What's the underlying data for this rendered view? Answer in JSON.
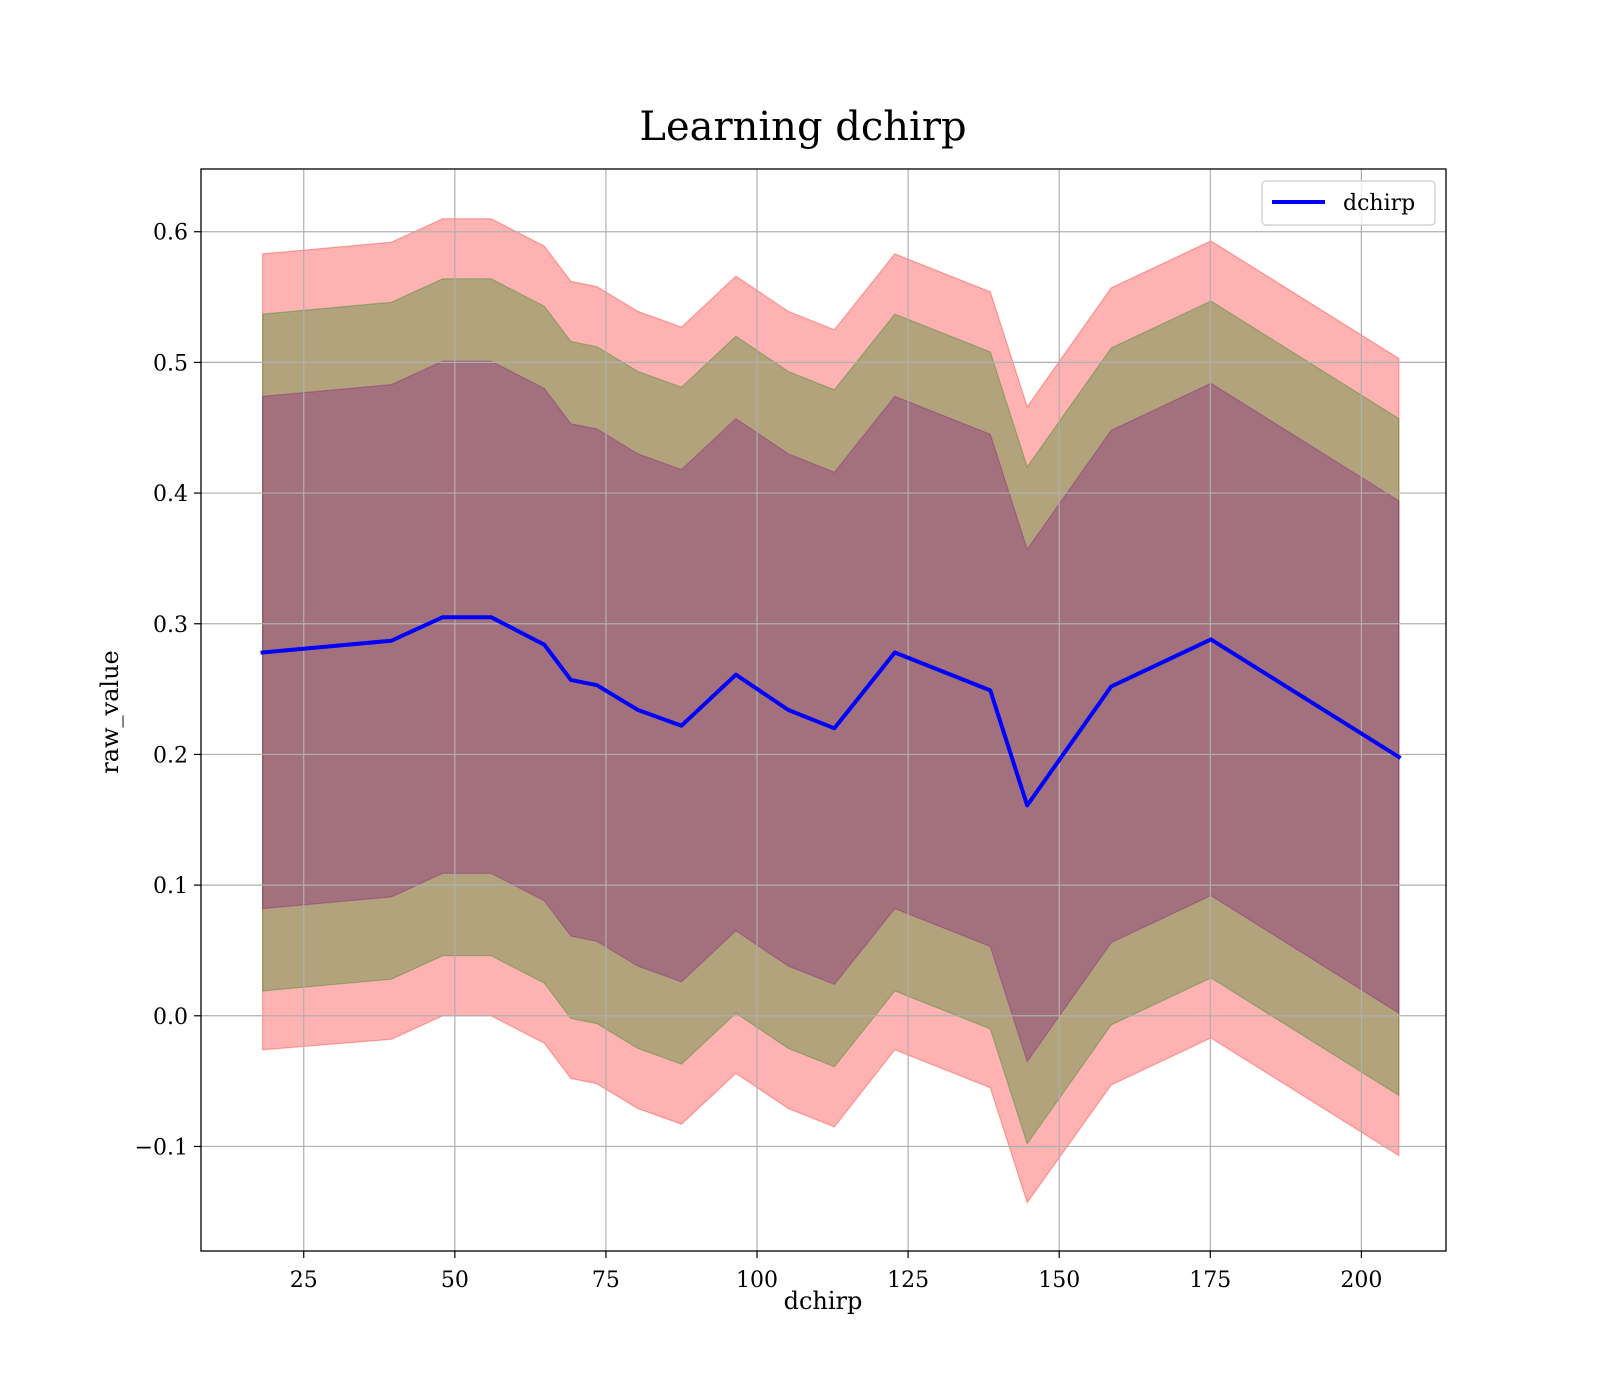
{
  "chart_data": {
    "type": "line",
    "title": "Learning dchirp",
    "xlabel": "dchirp",
    "ylabel": "raw_value",
    "xlim": [
      8,
      214
    ],
    "ylim": [
      -0.18,
      0.648
    ],
    "xticks": [
      25,
      50,
      75,
      100,
      125,
      150,
      175,
      200
    ],
    "yticks": [
      -0.1,
      0.0,
      0.1,
      0.2,
      0.3,
      0.4,
      0.5,
      0.6
    ],
    "ytick_labels": [
      "−0.1",
      "0.0",
      "0.1",
      "0.2",
      "0.3",
      "0.4",
      "0.5",
      "0.6"
    ],
    "grid": true,
    "legend_position": "top-right",
    "x": [
      18.2,
      39.5,
      48.0,
      56.0,
      64.8,
      69.2,
      73.5,
      80.3,
      87.5,
      96.5,
      105.2,
      112.8,
      122.8,
      138.6,
      144.7,
      158.6,
      175.1,
      206.2
    ],
    "series": [
      {
        "name": "dchirp",
        "color": "#0000ff",
        "values": [
          0.278,
          0.287,
          0.305,
          0.305,
          0.284,
          0.257,
          0.253,
          0.234,
          0.222,
          0.261,
          0.234,
          0.22,
          0.278,
          0.249,
          0.161,
          0.252,
          0.288,
          0.198
        ]
      }
    ],
    "bands": [
      {
        "color": "#ff0000",
        "opacity": 0.3,
        "lower": [
          -0.026,
          -0.018,
          0.0,
          0.0,
          -0.021,
          -0.048,
          -0.052,
          -0.071,
          -0.083,
          -0.044,
          -0.071,
          -0.085,
          -0.026,
          -0.055,
          -0.143,
          -0.053,
          -0.017,
          -0.107
        ],
        "upper": [
          0.583,
          0.592,
          0.61,
          0.61,
          0.589,
          0.562,
          0.558,
          0.539,
          0.527,
          0.566,
          0.539,
          0.525,
          0.583,
          0.554,
          0.466,
          0.557,
          0.593,
          0.503
        ]
      },
      {
        "color": "#008000",
        "opacity": 0.3,
        "lower": [
          0.019,
          0.028,
          0.046,
          0.046,
          0.025,
          -0.002,
          -0.006,
          -0.025,
          -0.037,
          0.002,
          -0.025,
          -0.039,
          0.019,
          -0.01,
          -0.098,
          -0.007,
          0.029,
          -0.061
        ],
        "upper": [
          0.537,
          0.546,
          0.564,
          0.564,
          0.543,
          0.516,
          0.512,
          0.493,
          0.481,
          0.52,
          0.493,
          0.479,
          0.537,
          0.508,
          0.42,
          0.511,
          0.547,
          0.457
        ]
      },
      {
        "color": "#800080",
        "opacity": 0.3,
        "lower": [
          0.082,
          0.091,
          0.109,
          0.109,
          0.088,
          0.061,
          0.057,
          0.038,
          0.026,
          0.065,
          0.038,
          0.024,
          0.082,
          0.053,
          -0.035,
          0.056,
          0.092,
          0.002
        ],
        "upper": [
          0.474,
          0.483,
          0.501,
          0.501,
          0.48,
          0.453,
          0.449,
          0.43,
          0.418,
          0.457,
          0.43,
          0.416,
          0.474,
          0.445,
          0.357,
          0.448,
          0.484,
          0.394
        ]
      }
    ]
  }
}
